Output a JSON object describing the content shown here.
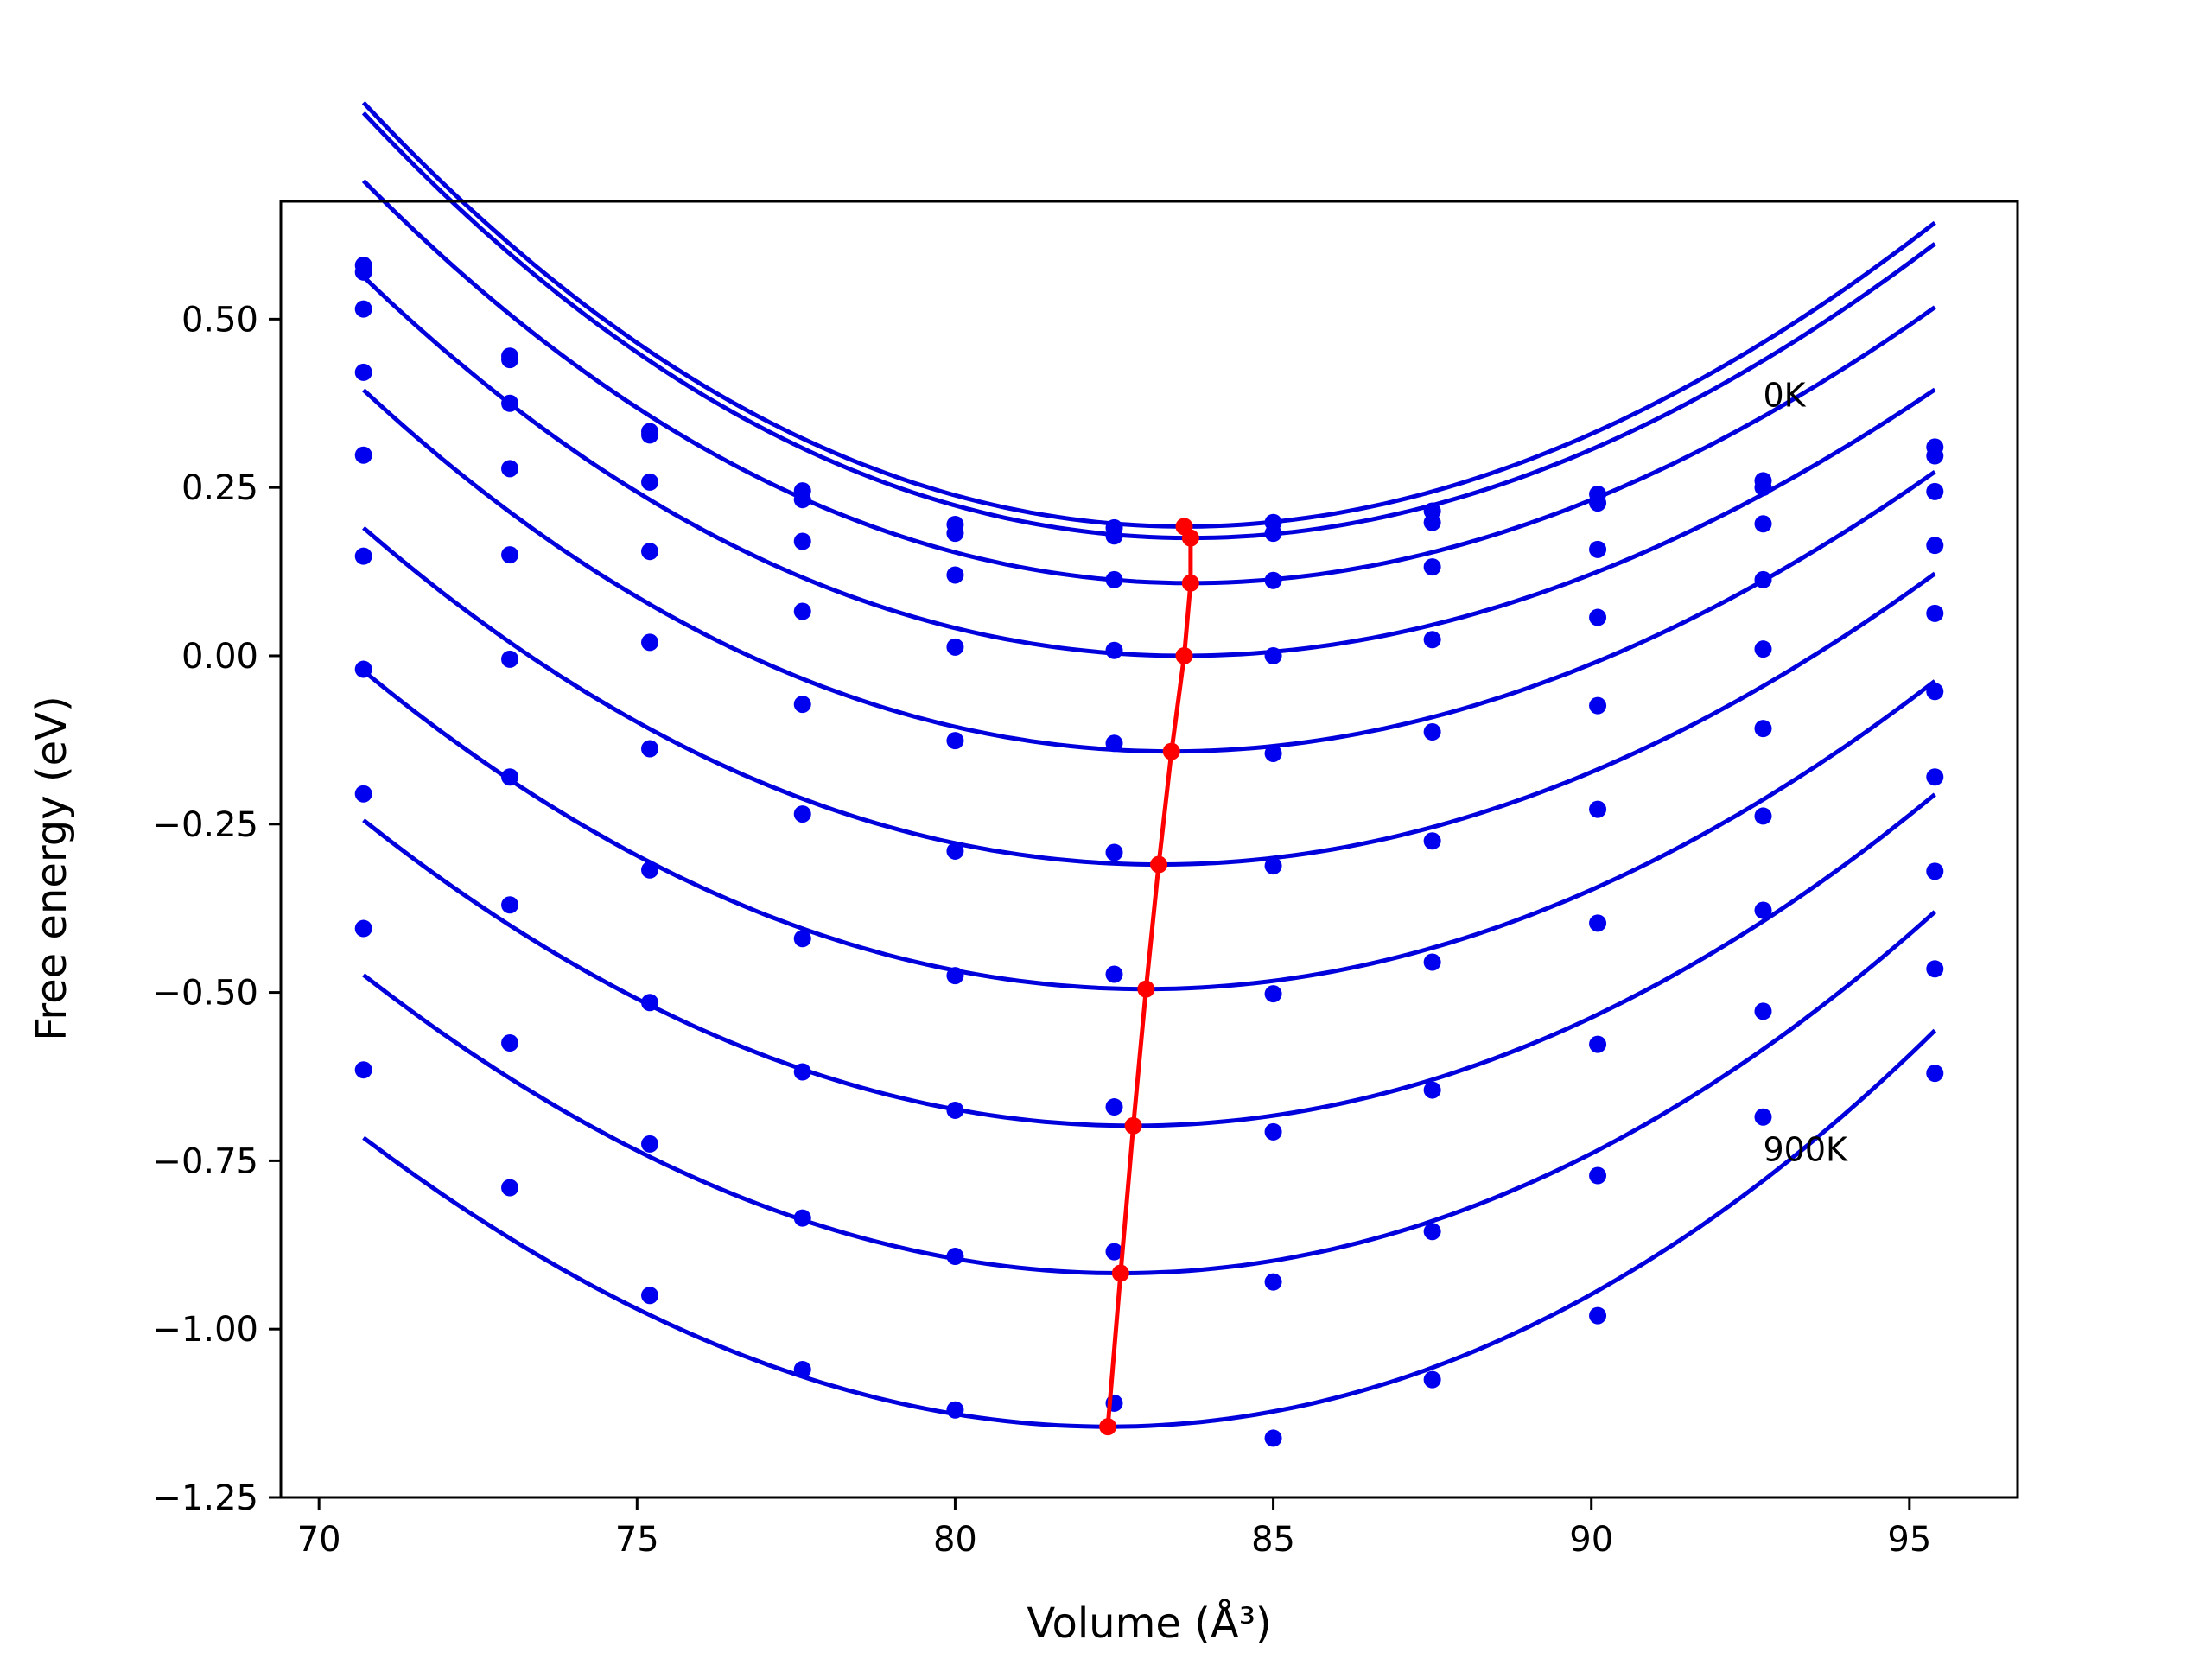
{
  "chart_data": {
    "type": "line",
    "title": "",
    "xlabel": "Volume (Å³)",
    "ylabel": "Free energy (eV)",
    "xlim": [
      69.4,
      96.7
    ],
    "ylim": [
      -1.25,
      0.675
    ],
    "xticks": [
      70,
      75,
      80,
      85,
      90,
      95
    ],
    "xtick_labels": [
      "70",
      "75",
      "80",
      "85",
      "90",
      "95"
    ],
    "yticks": [
      -1.25,
      -1.0,
      -0.75,
      -0.5,
      -0.25,
      0.0,
      0.25,
      0.5
    ],
    "ytick_labels": [
      "−1.25",
      "−1.00",
      "−0.75",
      "−0.50",
      "−0.25",
      "0.00",
      "0.25",
      "0.50"
    ],
    "grid": false,
    "colors": {
      "fit": "#0000dd",
      "points": "#0000ee",
      "min": "#ff0000"
    },
    "volumes": [
      70.7,
      73.0,
      75.2,
      77.6,
      80.0,
      82.5,
      85.0,
      87.5,
      90.1,
      92.7,
      95.4
    ],
    "annotations": [
      {
        "text": "0K",
        "x": 92.7,
        "y": 0.37
      },
      {
        "text": "900K",
        "x": 92.7,
        "y": -0.75
      }
    ],
    "series": [
      {
        "points": [
          0.58,
          0.445,
          0.333,
          0.245,
          0.195,
          0.19,
          0.198,
          0.215,
          0.24,
          0.25,
          0.31
        ],
        "fit": {
          "vmin": 83.6,
          "fmin": 0.192,
          "a": 0.0035,
          "b": -2.2e-05
        }
      },
      {
        "points": [
          0.57,
          0.44,
          0.328,
          0.232,
          0.182,
          0.178,
          0.182,
          0.198,
          0.227,
          0.26,
          0.297
        ],
        "fit": {
          "vmin": 83.7,
          "fmin": 0.175,
          "a": 0.00345,
          "b": -2.2e-05
        }
      },
      {
        "points": [
          0.515,
          0.375,
          0.258,
          0.17,
          0.12,
          0.113,
          0.112,
          0.132,
          0.158,
          0.196,
          0.244
        ],
        "fit": {
          "vmin": 83.7,
          "fmin": 0.108,
          "a": 0.00325,
          "b": -2.2e-05
        }
      },
      {
        "points": [
          0.421,
          0.278,
          0.155,
          0.066,
          0.013,
          0.008,
          0.0,
          0.024,
          0.057,
          0.113,
          0.164
        ],
        "fit": {
          "vmin": 83.6,
          "fmin": 0.0,
          "a": 0.0031,
          "b": -2.2e-05
        }
      },
      {
        "points": [
          0.298,
          0.15,
          0.02,
          -0.072,
          -0.126,
          -0.13,
          -0.145,
          -0.113,
          -0.074,
          0.01,
          0.063
        ],
        "fit": {
          "vmin": 83.4,
          "fmin": -0.142,
          "a": 0.0031,
          "b": -1.8e-05
        }
      },
      {
        "points": [
          0.148,
          -0.005,
          -0.138,
          -0.235,
          -0.29,
          -0.292,
          -0.312,
          -0.275,
          -0.228,
          -0.108,
          -0.053
        ],
        "fit": {
          "vmin": 83.2,
          "fmin": -0.31,
          "a": 0.00305,
          "b": -1.2e-05
        }
      },
      {
        "points": [
          -0.02,
          -0.18,
          -0.318,
          -0.42,
          -0.475,
          -0.473,
          -0.502,
          -0.455,
          -0.397,
          -0.238,
          -0.18
        ],
        "fit": {
          "vmin": 83.0,
          "fmin": -0.495,
          "a": 0.00305,
          "b": -6e-06
        }
      },
      {
        "points": [
          -0.205,
          -0.37,
          -0.515,
          -0.618,
          -0.675,
          -0.67,
          -0.707,
          -0.645,
          -0.577,
          -0.378,
          -0.32
        ],
        "fit": {
          "vmin": 82.8,
          "fmin": -0.698,
          "a": 0.0031,
          "b": 0.0
        }
      },
      {
        "points": [
          -0.405,
          -0.575,
          -0.725,
          -0.835,
          -0.892,
          -0.885,
          -0.93,
          -0.855,
          -0.772,
          -0.528,
          -0.465
        ],
        "fit": {
          "vmin": 82.6,
          "fmin": -0.917,
          "a": 0.0032,
          "b": 6e-06
        }
      },
      {
        "points": [
          -0.615,
          -0.79,
          -0.95,
          -1.06,
          -1.12,
          -1.11,
          -1.162,
          -1.075,
          -0.98,
          -0.685,
          -0.62
        ],
        "fit": {
          "vmin": 82.4,
          "fmin": -1.145,
          "a": 0.0033,
          "b": 1.4e-05
        }
      }
    ],
    "minimum_line": {
      "x": [
        83.6,
        83.7,
        83.7,
        83.6,
        83.4,
        83.2,
        83.0,
        82.8,
        82.6,
        82.4
      ],
      "y": [
        0.192,
        0.175,
        0.108,
        0.0,
        -0.142,
        -0.31,
        -0.495,
        -0.698,
        -0.917,
        -1.145
      ]
    }
  }
}
